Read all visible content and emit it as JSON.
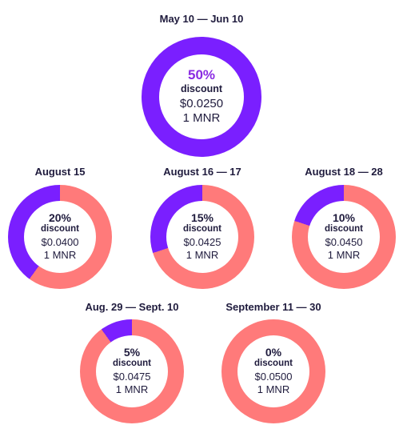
{
  "colors": {
    "purple": "#7a1fff",
    "salmon": "#ff7a7a",
    "accent_text": "#8a2be2"
  },
  "phases": [
    {
      "date": "May 10 — Jun 10",
      "percent": "50%",
      "label": "discount",
      "price": "$0.0250",
      "unit": "1 MNR",
      "discount_value": 50
    },
    {
      "date": "August 15",
      "percent": "20%",
      "label": "discount",
      "price": "$0.0400",
      "unit": "1 MNR",
      "discount_value": 20
    },
    {
      "date": "August 16 — 17",
      "percent": "15%",
      "label": "discount",
      "price": "$0.0425",
      "unit": "1 MNR",
      "discount_value": 15
    },
    {
      "date": "August 18 — 28",
      "percent": "10%",
      "label": "discount",
      "price": "$0.0450",
      "unit": "1 MNR",
      "discount_value": 10
    },
    {
      "date": "Aug. 29 — Sept. 10",
      "percent": "5%",
      "label": "discount",
      "price": "$0.0475",
      "unit": "1 MNR",
      "discount_value": 5
    },
    {
      "date": "September 11 — 30",
      "percent": "0%",
      "label": "discount",
      "price": "$0.0500",
      "unit": "1 MNR",
      "discount_value": 0
    }
  ]
}
